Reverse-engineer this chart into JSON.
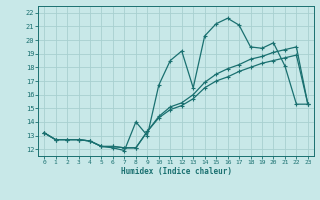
{
  "xlabel": "Humidex (Indice chaleur)",
  "bg_color": "#c8e8e8",
  "line_color": "#1a7070",
  "xlim": [
    -0.5,
    23.5
  ],
  "ylim": [
    11.5,
    22.5
  ],
  "xticks": [
    0,
    1,
    2,
    3,
    4,
    5,
    6,
    7,
    8,
    9,
    10,
    11,
    12,
    13,
    14,
    15,
    16,
    17,
    18,
    19,
    20,
    21,
    22,
    23
  ],
  "yticks": [
    12,
    13,
    14,
    15,
    16,
    17,
    18,
    19,
    20,
    21,
    22
  ],
  "grid_color": "#a8d0d0",
  "lines": [
    {
      "x": [
        0,
        1,
        2,
        3,
        4,
        5,
        6,
        7,
        8,
        9,
        10,
        11,
        12,
        13,
        14,
        15,
        16,
        17,
        18,
        19,
        20,
        21,
        22,
        23
      ],
      "y": [
        13.2,
        12.7,
        12.7,
        12.7,
        12.6,
        12.2,
        12.1,
        11.9,
        14.0,
        13.0,
        16.7,
        18.5,
        19.2,
        16.5,
        20.3,
        21.2,
        21.6,
        21.1,
        19.5,
        19.4,
        19.8,
        18.1,
        15.3,
        15.3
      ]
    },
    {
      "x": [
        0,
        1,
        2,
        3,
        4,
        5,
        6,
        7,
        8,
        9,
        10,
        11,
        12,
        13,
        14,
        15,
        16,
        17,
        18,
        19,
        20,
        21,
        22,
        23
      ],
      "y": [
        13.2,
        12.7,
        12.7,
        12.7,
        12.6,
        12.2,
        12.2,
        12.1,
        12.1,
        13.3,
        14.4,
        15.1,
        15.4,
        16.0,
        16.9,
        17.5,
        17.9,
        18.2,
        18.6,
        18.8,
        19.1,
        19.3,
        19.5,
        15.3
      ]
    },
    {
      "x": [
        0,
        1,
        2,
        3,
        4,
        5,
        6,
        7,
        8,
        9,
        10,
        11,
        12,
        13,
        14,
        15,
        16,
        17,
        18,
        19,
        20,
        21,
        22,
        23
      ],
      "y": [
        13.2,
        12.7,
        12.7,
        12.7,
        12.6,
        12.2,
        12.2,
        12.1,
        12.1,
        13.3,
        14.3,
        14.9,
        15.2,
        15.7,
        16.5,
        17.0,
        17.3,
        17.7,
        18.0,
        18.3,
        18.5,
        18.7,
        18.9,
        15.3
      ]
    }
  ]
}
